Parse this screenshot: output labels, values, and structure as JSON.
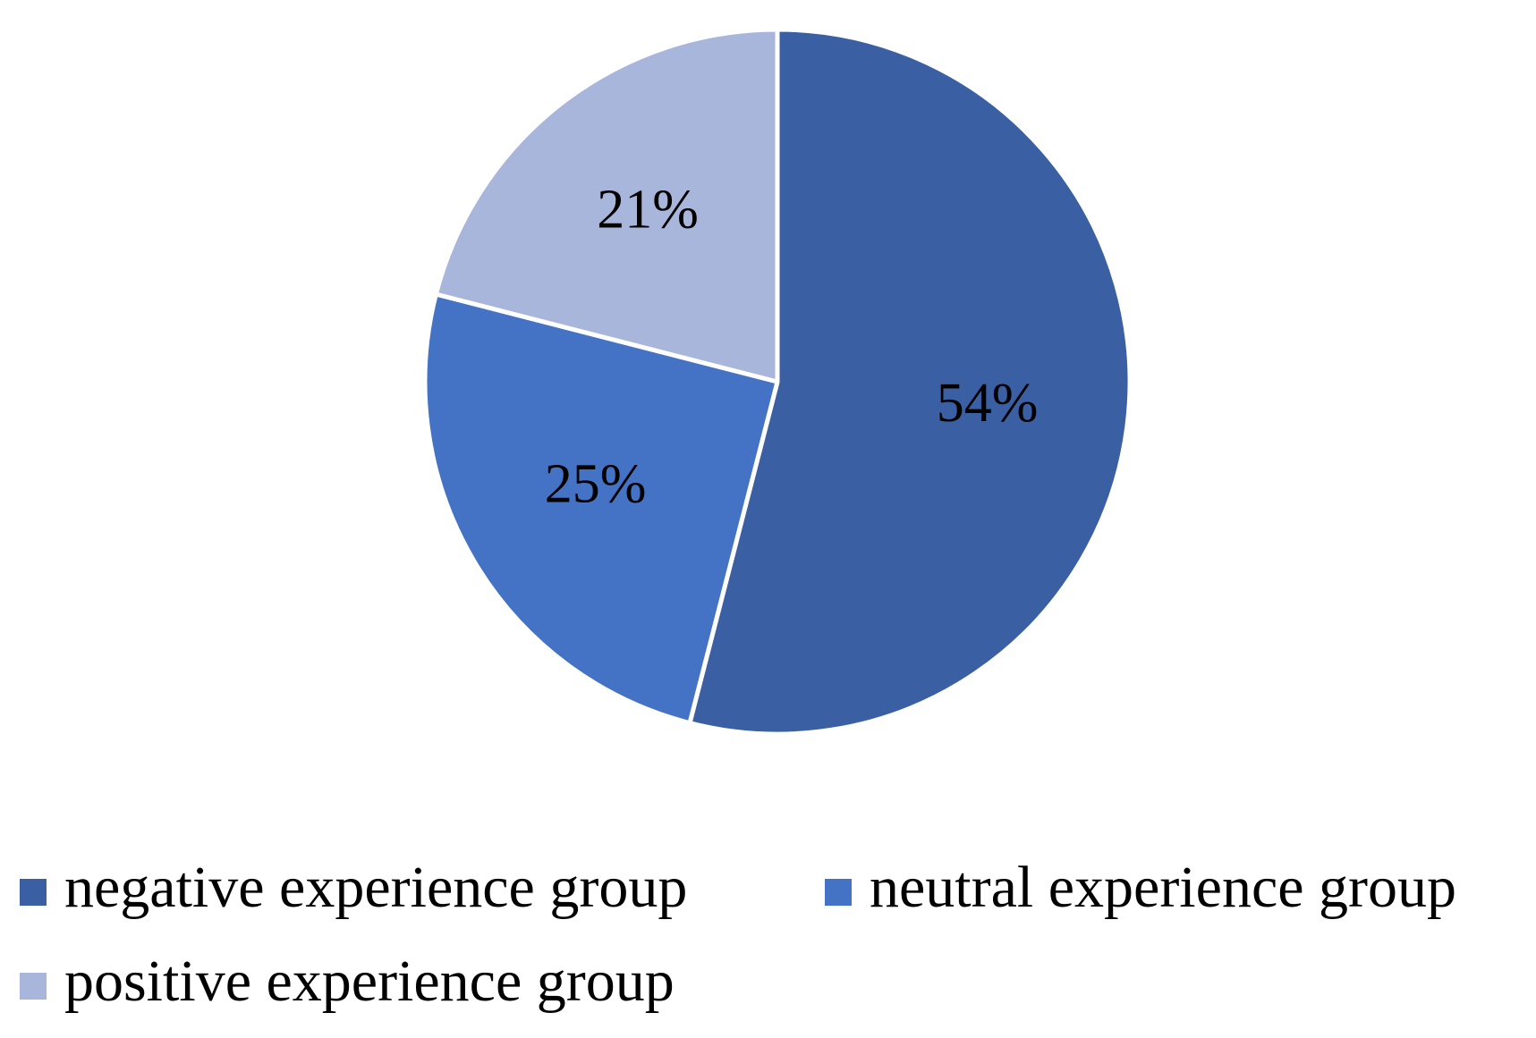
{
  "chart_data": {
    "type": "pie",
    "categories": [
      "negative experience group",
      "neutral experience group",
      "positive experience group"
    ],
    "values": [
      54,
      25,
      21
    ],
    "value_labels": [
      "54%",
      "25%",
      "21%"
    ],
    "colors": [
      "#3A5FA3",
      "#4472C4",
      "#A9B6DB"
    ],
    "legend": "bottom"
  }
}
